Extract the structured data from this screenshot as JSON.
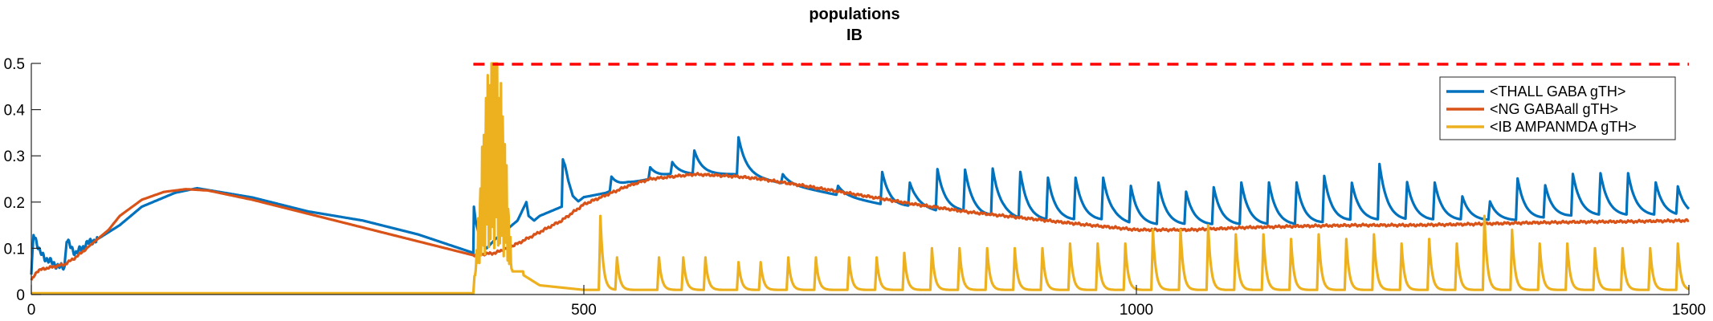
{
  "chart_data": {
    "type": "line",
    "title": [
      "populations",
      "IB"
    ],
    "xlabel": "",
    "ylabel": "",
    "xlim": [
      0,
      1500
    ],
    "ylim": [
      0,
      0.5
    ],
    "x_ticks": [
      0,
      500,
      1000,
      1500
    ],
    "x_tick_labels": [
      "0",
      "500",
      "1000",
      "1500"
    ],
    "y_ticks": [
      0,
      0.1,
      0.2,
      0.3,
      0.4,
      0.5
    ],
    "y_tick_labels": [
      "0",
      "0.1",
      "0.2",
      "0.3",
      "0.4",
      "0.5"
    ],
    "grid": false,
    "legend_position": "top-right",
    "threshold": {
      "y": 0.5,
      "x_start": 400,
      "x_end": 1500,
      "color": "#ff0000",
      "style": "dashed"
    },
    "series": [
      {
        "name": "<THALL GABA gTH>",
        "color": "#0072bd",
        "x": [
          0,
          2,
          4,
          8,
          12,
          18,
          25,
          30,
          32,
          36,
          40,
          46,
          50,
          60,
          80,
          100,
          130,
          150,
          200,
          250,
          300,
          350,
          400,
          400.5,
          402,
          405,
          408,
          412,
          420,
          430,
          440,
          448,
          450,
          455,
          460,
          470,
          480,
          481,
          483,
          486,
          490,
          495,
          500,
          520,
          540,
          560,
          580,
          600,
          620,
          640,
          660,
          680,
          700,
          720,
          740,
          760,
          780,
          800,
          820,
          840,
          860,
          880,
          900,
          920,
          940,
          960,
          980,
          1000,
          1050,
          1100,
          1150,
          1200,
          1250,
          1300,
          1350,
          1400,
          1450,
          1500
        ],
        "y": [
          0.04,
          0.13,
          0.12,
          0.09,
          0.08,
          0.07,
          0.06,
          0.06,
          0.12,
          0.1,
          0.09,
          0.1,
          0.11,
          0.12,
          0.15,
          0.19,
          0.22,
          0.23,
          0.21,
          0.18,
          0.16,
          0.13,
          0.09,
          0.19,
          0.16,
          0.13,
          0.11,
          0.1,
          0.12,
          0.14,
          0.16,
          0.2,
          0.17,
          0.16,
          0.17,
          0.18,
          0.19,
          0.28,
          0.27,
          0.24,
          0.21,
          0.2,
          0.21,
          0.22,
          0.24,
          0.25,
          0.26,
          0.26,
          0.26,
          0.26,
          0.25,
          0.24,
          0.23,
          0.22,
          0.21,
          0.2,
          0.19,
          0.19,
          0.18,
          0.18,
          0.17,
          0.17,
          0.16,
          0.16,
          0.16,
          0.16,
          0.16,
          0.15,
          0.15,
          0.15,
          0.15,
          0.16,
          0.16,
          0.16,
          0.16,
          0.17,
          0.17,
          0.17
        ],
        "spikes": [
          {
            "x": 420,
            "h": 0.06
          },
          {
            "x": 455,
            "h": 0.05
          },
          {
            "x": 472,
            "h": 0.04
          },
          {
            "x": 525,
            "h": 0.03
          },
          {
            "x": 560,
            "h": 0.025
          },
          {
            "x": 580,
            "h": 0.025
          },
          {
            "x": 600,
            "h": 0.05
          },
          {
            "x": 640,
            "h": 0.08
          },
          {
            "x": 680,
            "h": 0.02
          },
          {
            "x": 730,
            "h": 0.02
          },
          {
            "x": 770,
            "h": 0.07
          },
          {
            "x": 795,
            "h": 0.05
          },
          {
            "x": 820,
            "h": 0.09
          },
          {
            "x": 845,
            "h": 0.09
          },
          {
            "x": 870,
            "h": 0.1
          },
          {
            "x": 895,
            "h": 0.1
          },
          {
            "x": 920,
            "h": 0.09
          },
          {
            "x": 945,
            "h": 0.09
          },
          {
            "x": 970,
            "h": 0.09
          },
          {
            "x": 995,
            "h": 0.08
          },
          {
            "x": 1020,
            "h": 0.09
          },
          {
            "x": 1045,
            "h": 0.07
          },
          {
            "x": 1070,
            "h": 0.08
          },
          {
            "x": 1095,
            "h": 0.09
          },
          {
            "x": 1120,
            "h": 0.09
          },
          {
            "x": 1145,
            "h": 0.09
          },
          {
            "x": 1170,
            "h": 0.1
          },
          {
            "x": 1195,
            "h": 0.08
          },
          {
            "x": 1220,
            "h": 0.12
          },
          {
            "x": 1245,
            "h": 0.08
          },
          {
            "x": 1270,
            "h": 0.08
          },
          {
            "x": 1295,
            "h": 0.05
          },
          {
            "x": 1320,
            "h": 0.04
          },
          {
            "x": 1345,
            "h": 0.09
          },
          {
            "x": 1370,
            "h": 0.07
          },
          {
            "x": 1395,
            "h": 0.09
          },
          {
            "x": 1420,
            "h": 0.09
          },
          {
            "x": 1445,
            "h": 0.09
          },
          {
            "x": 1470,
            "h": 0.07
          },
          {
            "x": 1490,
            "h": 0.06
          }
        ]
      },
      {
        "name": "<NG GABAall gTH>",
        "color": "#d95319",
        "x": [
          0,
          5,
          10,
          20,
          30,
          40,
          50,
          60,
          70,
          80,
          100,
          120,
          140,
          160,
          200,
          250,
          300,
          350,
          400,
          420,
          440,
          460,
          480,
          500,
          520,
          540,
          560,
          580,
          600,
          620,
          640,
          660,
          700,
          750,
          800,
          850,
          900,
          950,
          1000,
          1050,
          1100,
          1150,
          1200,
          1250,
          1300,
          1350,
          1400,
          1450,
          1500
        ],
        "y": [
          0.03,
          0.05,
          0.055,
          0.06,
          0.065,
          0.08,
          0.1,
          0.12,
          0.14,
          0.17,
          0.205,
          0.222,
          0.228,
          0.225,
          0.205,
          0.175,
          0.145,
          0.115,
          0.085,
          0.09,
          0.11,
          0.135,
          0.16,
          0.195,
          0.215,
          0.235,
          0.25,
          0.255,
          0.26,
          0.258,
          0.255,
          0.25,
          0.235,
          0.215,
          0.195,
          0.178,
          0.165,
          0.152,
          0.14,
          0.14,
          0.145,
          0.148,
          0.15,
          0.15,
          0.152,
          0.155,
          0.157,
          0.158,
          0.16
        ]
      },
      {
        "name": "<IB AMPANMDA gTH>",
        "color": "#edb120",
        "baseline": [
          [
            0,
            0.003
          ],
          [
            400,
            0.003
          ],
          [
            401,
            0.04
          ],
          [
            410,
            0.06
          ],
          [
            440,
            0.05
          ],
          [
            460,
            0.02
          ],
          [
            500,
            0.01
          ],
          [
            550,
            0.01
          ],
          [
            1500,
            0.01
          ]
        ],
        "burst": {
          "x_start": 402,
          "x_end": 445,
          "max": 0.5
        },
        "spikes": [
          {
            "x": 515,
            "h": 0.16
          },
          {
            "x": 530,
            "h": 0.07
          },
          {
            "x": 568,
            "h": 0.07
          },
          {
            "x": 590,
            "h": 0.07
          },
          {
            "x": 610,
            "h": 0.07
          },
          {
            "x": 640,
            "h": 0.06
          },
          {
            "x": 660,
            "h": 0.06
          },
          {
            "x": 685,
            "h": 0.07
          },
          {
            "x": 710,
            "h": 0.07
          },
          {
            "x": 740,
            "h": 0.07
          },
          {
            "x": 765,
            "h": 0.07
          },
          {
            "x": 790,
            "h": 0.08
          },
          {
            "x": 815,
            "h": 0.09
          },
          {
            "x": 840,
            "h": 0.09
          },
          {
            "x": 865,
            "h": 0.09
          },
          {
            "x": 890,
            "h": 0.09
          },
          {
            "x": 915,
            "h": 0.09
          },
          {
            "x": 940,
            "h": 0.1
          },
          {
            "x": 965,
            "h": 0.1
          },
          {
            "x": 990,
            "h": 0.1
          },
          {
            "x": 1015,
            "h": 0.13
          },
          {
            "x": 1040,
            "h": 0.13
          },
          {
            "x": 1065,
            "h": 0.14
          },
          {
            "x": 1090,
            "h": 0.12
          },
          {
            "x": 1115,
            "h": 0.12
          },
          {
            "x": 1140,
            "h": 0.11
          },
          {
            "x": 1165,
            "h": 0.12
          },
          {
            "x": 1190,
            "h": 0.11
          },
          {
            "x": 1215,
            "h": 0.12
          },
          {
            "x": 1240,
            "h": 0.1
          },
          {
            "x": 1265,
            "h": 0.11
          },
          {
            "x": 1290,
            "h": 0.1
          },
          {
            "x": 1315,
            "h": 0.16
          },
          {
            "x": 1340,
            "h": 0.13
          },
          {
            "x": 1365,
            "h": 0.1
          },
          {
            "x": 1390,
            "h": 0.1
          },
          {
            "x": 1415,
            "h": 0.09
          },
          {
            "x": 1440,
            "h": 0.09
          },
          {
            "x": 1465,
            "h": 0.09
          },
          {
            "x": 1490,
            "h": 0.1
          }
        ]
      }
    ]
  }
}
